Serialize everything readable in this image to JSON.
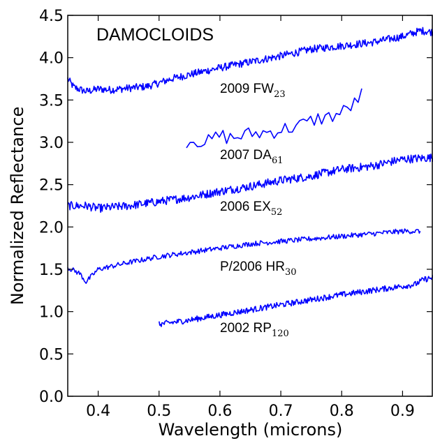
{
  "chart_data": {
    "type": "line",
    "title": "DAMOCLOIDS",
    "xlabel": "Wavelength (microns)",
    "ylabel": "Normalized Reflectance",
    "xlim": [
      0.35,
      0.95
    ],
    "ylim": [
      0.0,
      4.5
    ],
    "xticks": [
      "0.4",
      "0.5",
      "0.6",
      "0.7",
      "0.8",
      "0.9"
    ],
    "yticks": [
      "0.0",
      "0.5",
      "1.0",
      "1.5",
      "2.0",
      "2.5",
      "3.0",
      "3.5",
      "4.0",
      "4.5"
    ],
    "grid": false,
    "color": "#0000ff",
    "series": [
      {
        "name": "2009 FW23",
        "label_main": "2009 FW",
        "label_sub": "23",
        "x": [
          0.35,
          0.36,
          0.38,
          0.4,
          0.42,
          0.45,
          0.48,
          0.5,
          0.52,
          0.55,
          0.6,
          0.65,
          0.7,
          0.75,
          0.8,
          0.85,
          0.9,
          0.93,
          0.95
        ],
        "y": [
          3.75,
          3.65,
          3.6,
          3.63,
          3.62,
          3.64,
          3.66,
          3.7,
          3.75,
          3.8,
          3.88,
          3.95,
          4.02,
          4.1,
          4.14,
          4.18,
          4.25,
          4.32,
          4.3
        ]
      },
      {
        "name": "2007 DA61",
        "label_main": "2007 DA",
        "label_sub": "61",
        "x": [
          0.545,
          0.56,
          0.58,
          0.6,
          0.62,
          0.65,
          0.68,
          0.7,
          0.72,
          0.74,
          0.76,
          0.78,
          0.8,
          0.82,
          0.835
        ],
        "y": [
          3.02,
          3.03,
          3.0,
          3.08,
          3.05,
          3.1,
          3.12,
          3.15,
          3.18,
          3.22,
          3.28,
          3.3,
          3.35,
          3.45,
          3.58
        ]
      },
      {
        "name": "2006 EX52",
        "label_main": "2006 EX",
        "label_sub": "52",
        "x": [
          0.35,
          0.38,
          0.4,
          0.45,
          0.5,
          0.55,
          0.6,
          0.65,
          0.7,
          0.75,
          0.76,
          0.8,
          0.85,
          0.9,
          0.95
        ],
        "y": [
          2.25,
          2.25,
          2.22,
          2.25,
          2.3,
          2.35,
          2.42,
          2.48,
          2.55,
          2.6,
          2.62,
          2.68,
          2.72,
          2.8,
          2.82
        ]
      },
      {
        "name": "P/2006 HR30",
        "label_main": "P/2006 HR",
        "label_sub": "30",
        "x": [
          0.35,
          0.37,
          0.38,
          0.4,
          0.45,
          0.5,
          0.55,
          0.6,
          0.65,
          0.7,
          0.75,
          0.8,
          0.85,
          0.9,
          0.93
        ],
        "y": [
          1.52,
          1.45,
          1.35,
          1.5,
          1.58,
          1.65,
          1.7,
          1.75,
          1.8,
          1.83,
          1.86,
          1.89,
          1.92,
          1.95,
          1.95
        ]
      },
      {
        "name": "2002 RP120",
        "label_main": "2002 RP",
        "label_sub": "120",
        "x": [
          0.5,
          0.55,
          0.6,
          0.65,
          0.7,
          0.75,
          0.8,
          0.85,
          0.9,
          0.92,
          0.935,
          0.95
        ],
        "y": [
          0.85,
          0.9,
          0.96,
          1.02,
          1.08,
          1.14,
          1.2,
          1.25,
          1.3,
          1.32,
          1.38,
          1.4
        ]
      }
    ]
  }
}
